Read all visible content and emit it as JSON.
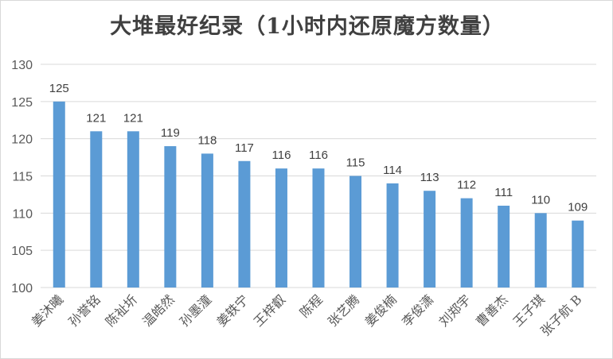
{
  "chart_data": {
    "type": "bar",
    "title": "大堆最好纪录（1小时内还原魔方数量）",
    "categories": [
      "姜沐曦",
      "孙誉铭",
      "陈祉圻",
      "温皓然",
      "孙墨潼",
      "姜轶宁",
      "王梓叡",
      "陈程",
      "张艺腾",
      "姜俊楠",
      "李俊潇",
      "刘郑宇",
      "曹善杰",
      "王子琪",
      "张子航 B"
    ],
    "values": [
      125,
      121,
      121,
      119,
      118,
      117,
      116,
      116,
      115,
      114,
      113,
      112,
      111,
      110,
      109
    ],
    "ylim": [
      100,
      130
    ],
    "yticks": [
      "100",
      "105",
      "110",
      "115",
      "120",
      "125",
      "130"
    ],
    "xlabel": "",
    "ylabel": "",
    "grid": true,
    "legend": "none",
    "bar_color": "#5b9bd5",
    "grid_color": "#d9d9d9"
  }
}
